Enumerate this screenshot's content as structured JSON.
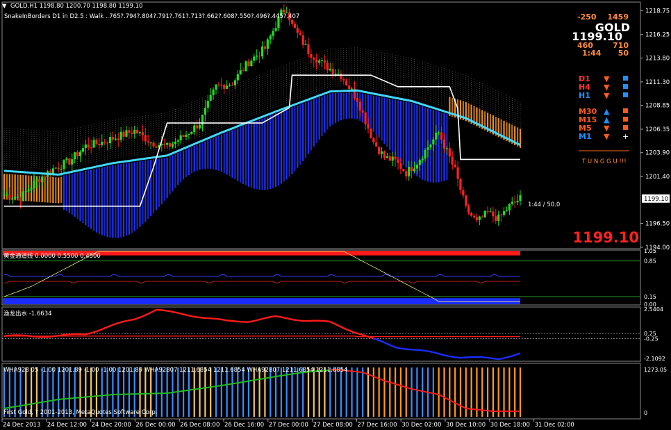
{
  "header": {
    "symbol_line": "GOLD,H1  1198.80 1200.70 1198.80 1199.10",
    "indicator_line": "SnakeInBorders D1 in D2.5 :   Walk ..765?.794?.804?.791?.761?.713?.662?.608?.550?.496?.445?.407"
  },
  "info_panel": {
    "val_a": "-250",
    "val_b": "1459",
    "symbol": "GOLD",
    "price": "1199.10",
    "val_c": "460",
    "val_d": "710",
    "timer": "1:44",
    "val_e": "50",
    "timeframes": [
      {
        "label": "D1",
        "dir": "down",
        "label_color": "#ff3030",
        "dir_color": "#ff5a1a",
        "box_color": "#1e90ff"
      },
      {
        "label": "H4",
        "dir": "down",
        "label_color": "#ff3030",
        "dir_color": "#ff5a1a",
        "box_color": "#1e90ff"
      },
      {
        "label": "H1",
        "dir": "down",
        "label_color": "#1e90ff",
        "dir_color": "#ff5a1a",
        "box_color": "#1e90ff"
      },
      {
        "label": "M30",
        "dir": "up",
        "label_color": "#ff5a1a",
        "dir_color": "#1e90ff",
        "box_color": "#ff5a1a"
      },
      {
        "label": "M15",
        "dir": "up",
        "label_color": "#ff5a1a",
        "dir_color": "#1e90ff",
        "box_color": "#ff5a1a"
      },
      {
        "label": "M5",
        "dir": "down",
        "label_color": "#ff5a1a",
        "dir_color": "#ff5a1a",
        "box_color": "#ff5a1a"
      },
      {
        "label": "M1",
        "dir": "down",
        "label_color": "#1e90ff",
        "dir_color": "#ff5a1a",
        "box_color": "#ffffff"
      }
    ],
    "status": "T U N G G U !!!"
  },
  "chart_annotation": "1:44 / 50.0",
  "big_price": "1199.10",
  "current_price_tag": "1199.10",
  "colors": {
    "bull": "#22dd22",
    "bear": "#ff2222",
    "ma": "#40d8ff",
    "band": "#2233ff",
    "band_orange": "#ff9920",
    "border_line": "#ffffff",
    "grid": "#2a2a2a"
  },
  "chart_data": [
    {
      "type": "candlestick",
      "symbol": "GOLD",
      "timeframe": "H1",
      "yticks": [
        "1218.75",
        "1216.25",
        "1213.80",
        "1211.30",
        "1208.85",
        "1206.35",
        "1203.90",
        "1201.40",
        "1196.50",
        "1194.00"
      ],
      "ylim": [
        1194.0,
        1219.5
      ],
      "x_labels": [
        "24 Dec 2013",
        "24 Dec 12:00",
        "24 Dec 20:00",
        "26 Dec 00:00",
        "26 Dec 08:00",
        "26 Dec 16:00",
        "27 Dec 00:00",
        "27 Dec 08:00",
        "27 Dec 16:00",
        "30 Dec 02:00",
        "30 Dec 10:00",
        "30 Dec 18:00",
        "31 Dec 02:00"
      ],
      "close_points": [
        [
          0,
          1199.5
        ],
        [
          6,
          1199.2
        ],
        [
          12,
          1201.0
        ],
        [
          18,
          1202.2
        ],
        [
          24,
          1203.0
        ],
        [
          30,
          1204.6
        ],
        [
          36,
          1205.0
        ],
        [
          42,
          1205.6
        ],
        [
          48,
          1206.2
        ],
        [
          54,
          1205.0
        ],
        [
          60,
          1204.5
        ],
        [
          66,
          1205.6
        ],
        [
          72,
          1207.0
        ],
        [
          78,
          1210.8
        ],
        [
          84,
          1211.2
        ],
        [
          90,
          1213.4
        ],
        [
          96,
          1214.8
        ],
        [
          102,
          1218.5
        ],
        [
          104,
          1219.0
        ],
        [
          106,
          1217.2
        ],
        [
          112,
          1214.5
        ],
        [
          118,
          1213.0
        ],
        [
          124,
          1212.0
        ],
        [
          130,
          1209.5
        ],
        [
          136,
          1205.0
        ],
        [
          140,
          1203.4
        ],
        [
          144,
          1203.0
        ],
        [
          148,
          1201.8
        ],
        [
          152,
          1202.9
        ],
        [
          156,
          1204.5
        ],
        [
          160,
          1206.0
        ],
        [
          166,
          1202.0
        ],
        [
          170,
          1198.0
        ],
        [
          174,
          1196.6
        ],
        [
          178,
          1197.6
        ],
        [
          182,
          1197.0
        ],
        [
          186,
          1198.3
        ],
        [
          190,
          1199.1
        ]
      ],
      "ma_points": [
        [
          0,
          1202.0
        ],
        [
          20,
          1201.6
        ],
        [
          40,
          1202.8
        ],
        [
          60,
          1203.6
        ],
        [
          80,
          1206.0
        ],
        [
          100,
          1208.2
        ],
        [
          120,
          1210.3
        ],
        [
          130,
          1210.4
        ],
        [
          150,
          1209.3
        ],
        [
          170,
          1207.5
        ],
        [
          190,
          1204.7
        ]
      ],
      "border_line_points": [
        [
          0,
          1198.3
        ],
        [
          50,
          1198.3
        ],
        [
          55,
          1202.4
        ],
        [
          60,
          1207.0
        ],
        [
          95,
          1207.0
        ],
        [
          105,
          1208.6
        ],
        [
          106,
          1212.0
        ],
        [
          135,
          1212.0
        ],
        [
          145,
          1210.8
        ],
        [
          164,
          1210.8
        ],
        [
          167,
          1208.5
        ],
        [
          168,
          1203.2
        ],
        [
          190,
          1203.2
        ]
      ],
      "annotation": "1:44 / 50.0"
    },
    {
      "type": "line",
      "label": "黄金通道线 0.0000 0.5500 0.4500",
      "ylim": [
        0,
        1.05
      ],
      "yticks": [
        "1.05",
        "0.85",
        "0.15",
        "0.00"
      ]
    },
    {
      "type": "line",
      "label": "渔龙出水 -1.6634",
      "ylim": [
        -2.3,
        2.6
      ],
      "yticks": [
        "2.5404",
        "0.25",
        "-0.25",
        "-2.1092"
      ]
    },
    {
      "type": "bar",
      "label": "WHA928 05 -1.00 1201.89 -1.00 -1.00 1201.89   WHA92807 1211.6854 1211.6854   WHA92807 1211.6854 1211.6854",
      "ylim": [
        0,
        1273.05
      ],
      "yticks": [
        "1273.05",
        "0"
      ]
    }
  ],
  "copyright": "First Gold, ? 2001-2013, MetaQuotes Software Corp."
}
